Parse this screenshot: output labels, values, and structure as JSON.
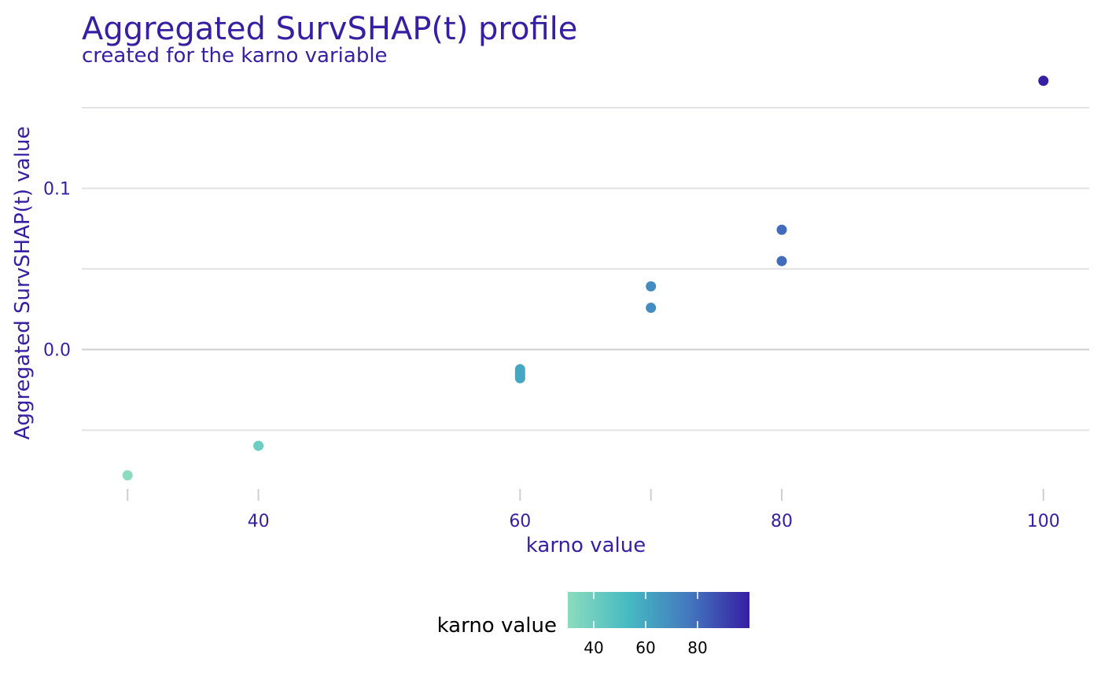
{
  "chart_data": {
    "type": "scatter",
    "title": "Aggregated SurvSHAP(t) profile",
    "subtitle": "created for the karno variable",
    "xlabel": "karno value",
    "ylabel": "Aggregated SurvSHAP(t) value",
    "xlim": [
      26.5,
      103.5
    ],
    "ylim": [
      -0.0855,
      0.1705
    ],
    "x_ticks": [
      40,
      60,
      80,
      100
    ],
    "x_tick_labels": [
      "40",
      "60",
      "80",
      "100"
    ],
    "x_minor_ticks": [
      30,
      70
    ],
    "y_ticks": [
      0.0,
      0.1
    ],
    "y_tick_labels": [
      "0.0",
      "0.1"
    ],
    "y_minor_ticks": [
      -0.05,
      0.05,
      0.15
    ],
    "grid": "horizontal",
    "points": [
      {
        "x": 30,
        "y": -0.078
      },
      {
        "x": 40,
        "y": -0.0597
      },
      {
        "x": 60,
        "y": -0.0122
      },
      {
        "x": 60,
        "y": -0.0138
      },
      {
        "x": 60,
        "y": -0.0152
      },
      {
        "x": 60,
        "y": -0.0165
      },
      {
        "x": 60,
        "y": -0.0178
      },
      {
        "x": 70,
        "y": 0.0392
      },
      {
        "x": 70,
        "y": 0.0259
      },
      {
        "x": 80,
        "y": 0.0743
      },
      {
        "x": 80,
        "y": 0.0549
      },
      {
        "x": 100,
        "y": 0.1667
      }
    ],
    "colorbar": {
      "title": "karno value",
      "range": [
        30,
        100
      ],
      "ticks": [
        40,
        60,
        80
      ],
      "tick_labels": [
        "40",
        "60",
        "80"
      ],
      "colors": [
        "#8bdcbe",
        "#46bac2",
        "#4378bf",
        "#371ea3"
      ],
      "position": "bottom"
    }
  }
}
